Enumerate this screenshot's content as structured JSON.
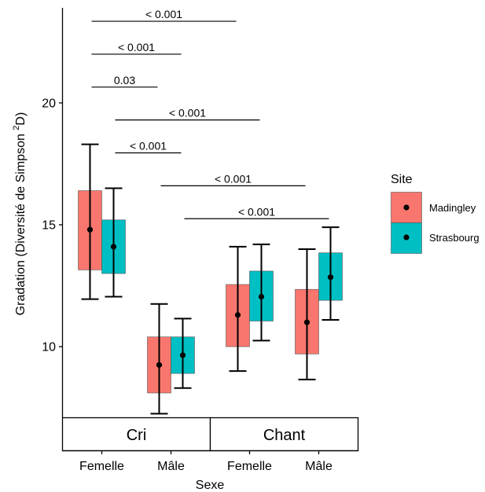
{
  "chart_data": {
    "type": "box",
    "xlabel": "Sexe",
    "ylabel": "Gradation (Diversité de Simpson ²D)",
    "ylabel_parts": [
      "Gradation (Diversité de Simpson ",
      "2",
      "D)"
    ],
    "ylim": [
      7.1,
      23.9
    ],
    "yticks": [
      10,
      15,
      20
    ],
    "grid": false,
    "facets": [
      "Cri",
      "Chant"
    ],
    "categories": [
      "Femelle",
      "Mâle"
    ],
    "legend": {
      "title": "Site",
      "position": "right"
    },
    "series": [
      {
        "name": "Madingley",
        "color": "#F8766D"
      },
      {
        "name": "Strasbourg",
        "color": "#00BFC4"
      }
    ],
    "boxes": [
      {
        "facet": "Cri",
        "sex": "Femelle",
        "site": "Madingley",
        "q1": 13.15,
        "q3": 16.4,
        "mean": 14.8,
        "lower": 11.95,
        "upper": 18.3
      },
      {
        "facet": "Cri",
        "sex": "Femelle",
        "site": "Strasbourg",
        "q1": 13.0,
        "q3": 15.2,
        "mean": 14.1,
        "lower": 12.05,
        "upper": 16.5
      },
      {
        "facet": "Cri",
        "sex": "Mâle",
        "site": "Madingley",
        "q1": 8.1,
        "q3": 10.4,
        "mean": 9.25,
        "lower": 7.25,
        "upper": 11.75
      },
      {
        "facet": "Cri",
        "sex": "Mâle",
        "site": "Strasbourg",
        "q1": 8.9,
        "q3": 10.4,
        "mean": 9.65,
        "lower": 8.3,
        "upper": 11.15
      },
      {
        "facet": "Chant",
        "sex": "Femelle",
        "site": "Madingley",
        "q1": 10.0,
        "q3": 12.55,
        "mean": 11.3,
        "lower": 9.0,
        "upper": 14.1
      },
      {
        "facet": "Chant",
        "sex": "Femelle",
        "site": "Strasbourg",
        "q1": 11.05,
        "q3": 13.1,
        "mean": 12.05,
        "lower": 10.25,
        "upper": 14.2
      },
      {
        "facet": "Chant",
        "sex": "Mâle",
        "site": "Madingley",
        "q1": 9.7,
        "q3": 12.35,
        "mean": 11.0,
        "lower": 8.65,
        "upper": 14.0
      },
      {
        "facet": "Chant",
        "sex": "Mâle",
        "site": "Strasbourg",
        "q1": 11.9,
        "q3": 13.85,
        "mean": 12.85,
        "lower": 11.1,
        "upper": 14.9
      }
    ],
    "comparisons": [
      {
        "from": 0,
        "to": 4,
        "y": 23.35,
        "label": "< 0.001"
      },
      {
        "from": 0,
        "to": 3,
        "y": 22.0,
        "label": "< 0.001"
      },
      {
        "from": 0,
        "to": 2,
        "y": 20.65,
        "label": "0.03"
      },
      {
        "from": 1,
        "to": 5,
        "y": 19.3,
        "label": "< 0.001"
      },
      {
        "from": 1,
        "to": 3,
        "y": 17.95,
        "label": "< 0.001"
      },
      {
        "from": 2,
        "to": 6,
        "y": 16.6,
        "label": "< 0.001"
      },
      {
        "from": 3,
        "to": 7,
        "y": 15.25,
        "label": "< 0.001"
      }
    ]
  }
}
